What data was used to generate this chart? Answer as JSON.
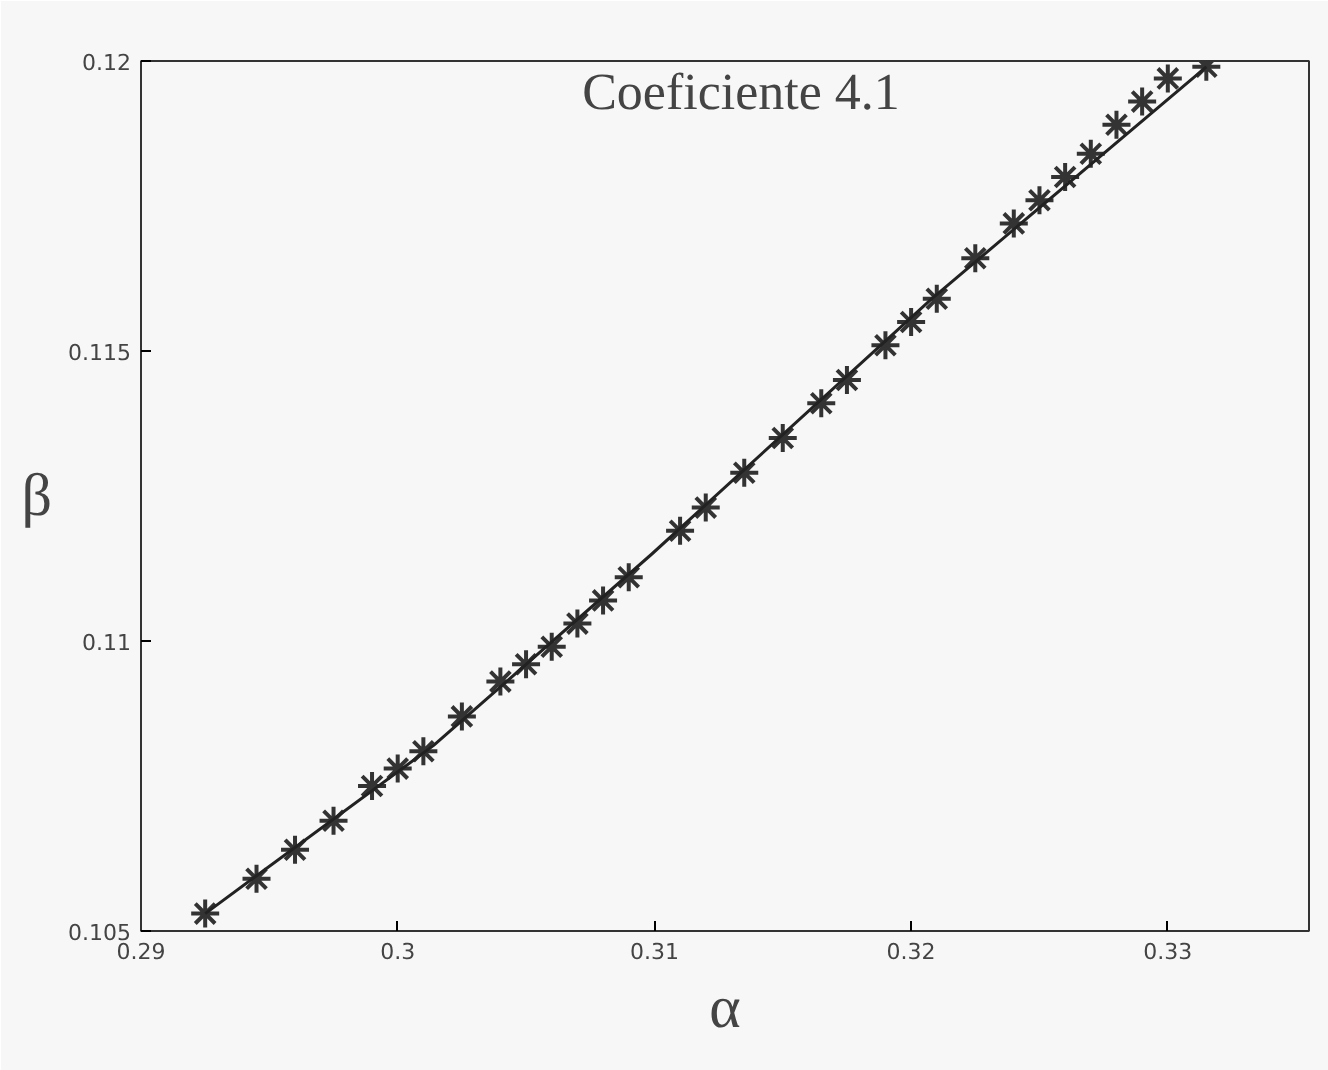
{
  "chart_data": {
    "type": "scatter",
    "title": "Coeficiente 4.1",
    "xlabel": "α",
    "ylabel": "β",
    "xlim": [
      0.29,
      0.3355
    ],
    "ylim": [
      0.105,
      0.12
    ],
    "xticks": [
      0.29,
      0.3,
      0.31,
      0.32,
      0.33
    ],
    "yticks": [
      0.105,
      0.11,
      0.115,
      0.12
    ],
    "grid": false,
    "series": [
      {
        "marker": "cross",
        "color": "#333333",
        "x": [
          0.2925,
          0.2945,
          0.296,
          0.2975,
          0.299,
          0.3,
          0.301,
          0.3025,
          0.304,
          0.305,
          0.306,
          0.307,
          0.308,
          0.309,
          0.311,
          0.312,
          0.3135,
          0.315,
          0.3165,
          0.3175,
          0.319,
          0.32,
          0.321,
          0.3225,
          0.324,
          0.325,
          0.326,
          0.327,
          0.328,
          0.329,
          0.33,
          0.3315
        ],
        "values": [
          0.1053,
          0.1059,
          0.1064,
          0.1069,
          0.1075,
          0.1078,
          0.1081,
          0.1087,
          0.1093,
          0.1096,
          0.1099,
          0.1103,
          0.1107,
          0.1111,
          0.1119,
          0.1123,
          0.1129,
          0.1135,
          0.1141,
          0.1145,
          0.1151,
          0.1155,
          0.1159,
          0.1166,
          0.1172,
          0.1176,
          0.118,
          0.1184,
          0.1189,
          0.1193,
          0.1197,
          0.1199
        ]
      },
      {
        "type": "line",
        "marker": "none",
        "color": "#222222",
        "x": [
          0.2925,
          0.3014,
          0.3099,
          0.3208,
          0.3315
        ],
        "values": [
          0.1053,
          0.1082,
          0.1115,
          0.1159,
          0.1199
        ]
      }
    ]
  }
}
